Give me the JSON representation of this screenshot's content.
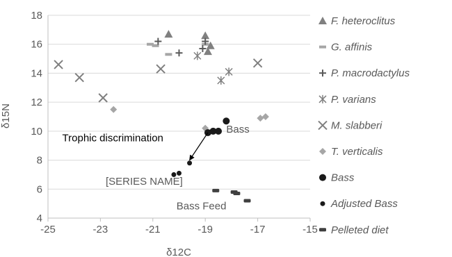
{
  "chart_data": {
    "type": "scatter",
    "title": "",
    "xlabel": "δ12C",
    "ylabel": "δ15N",
    "xlim": [
      -25,
      -15
    ],
    "ylim": [
      4,
      18
    ],
    "x_ticks": [
      -25,
      -23,
      -21,
      -19,
      -17,
      -15
    ],
    "y_ticks": [
      4,
      6,
      8,
      10,
      12,
      14,
      16,
      18
    ],
    "grid": "horizontal",
    "legend_position": "right",
    "series": [
      {
        "name": "F. heteroclitus",
        "marker": "triangle",
        "color": "#808080",
        "points": [
          [
            -20.4,
            16.7
          ],
          [
            -19.0,
            16.6
          ],
          [
            -18.8,
            15.9
          ],
          [
            -18.9,
            15.5
          ]
        ]
      },
      {
        "name": "G. affinis",
        "marker": "dash",
        "color": "#a6a6a6",
        "points": [
          [
            -21.1,
            16.0
          ],
          [
            -20.9,
            15.9
          ],
          [
            -20.4,
            15.3
          ],
          [
            -19.0,
            16.0
          ]
        ]
      },
      {
        "name": "P. macrodactylus",
        "marker": "plus",
        "color": "#595959",
        "points": [
          [
            -20.8,
            16.2
          ],
          [
            -20.0,
            15.4
          ],
          [
            -19.1,
            15.7
          ],
          [
            -19.0,
            16.2
          ]
        ]
      },
      {
        "name": "P. varians",
        "marker": "star",
        "color": "#7f7f7f",
        "points": [
          [
            -19.3,
            15.2
          ],
          [
            -18.4,
            13.5
          ],
          [
            -18.1,
            14.1
          ]
        ]
      },
      {
        "name": "M. slabberi",
        "marker": "x",
        "color": "#7f7f7f",
        "points": [
          [
            -24.6,
            14.6
          ],
          [
            -23.8,
            13.7
          ],
          [
            -22.9,
            12.3
          ],
          [
            -20.7,
            14.3
          ],
          [
            -17.0,
            14.7
          ]
        ]
      },
      {
        "name": "T. verticalis",
        "marker": "diamond",
        "color": "#a6a6a6",
        "points": [
          [
            -22.5,
            11.5
          ],
          [
            -19.0,
            10.2
          ],
          [
            -16.9,
            10.9
          ],
          [
            -16.7,
            11.0
          ]
        ]
      },
      {
        "name": "Bass",
        "marker": "circle-large",
        "color": "#1a1a1a",
        "points": [
          [
            -18.2,
            10.7
          ],
          [
            -18.5,
            10.0
          ],
          [
            -18.7,
            10.0
          ],
          [
            -18.9,
            9.9
          ]
        ]
      },
      {
        "name": "Adjusted Bass",
        "marker": "circle-small",
        "color": "#1a1a1a",
        "points": [
          [
            -19.6,
            7.8
          ],
          [
            -20.0,
            7.1
          ],
          [
            -20.2,
            7.0
          ]
        ]
      },
      {
        "name": "Pelleted diet",
        "marker": "dash-dark",
        "color": "#404040",
        "points": [
          [
            -18.6,
            5.9
          ],
          [
            -17.9,
            5.8
          ],
          [
            -17.8,
            5.7
          ],
          [
            -17.4,
            5.2
          ]
        ]
      }
    ],
    "annotations": [
      {
        "text": "Trophic discrimination",
        "x": -20.6,
        "y": 9.3,
        "anchor": "end",
        "color": "#000000"
      },
      {
        "text": "Bass",
        "x": -18.2,
        "y": 9.9,
        "anchor": "start",
        "color": "#595959"
      },
      {
        "text": "[SERIES NAME]",
        "x": -22.8,
        "y": 6.3,
        "anchor": "start",
        "color": "#595959"
      },
      {
        "text": "Bass Feed",
        "x": -20.1,
        "y": 4.6,
        "anchor": "start",
        "color": "#595959"
      }
    ],
    "arrow": {
      "from": [
        -18.9,
        9.9
      ],
      "to": [
        -19.6,
        8.0
      ]
    }
  }
}
